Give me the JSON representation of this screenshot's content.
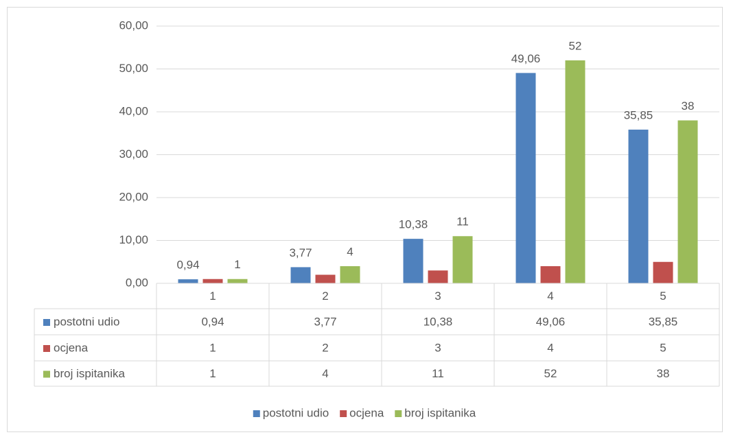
{
  "chart_data": {
    "type": "bar",
    "categories": [
      "1",
      "2",
      "3",
      "4",
      "5"
    ],
    "series": [
      {
        "name": "postotni udio",
        "color": "#4f81bd",
        "values": [
          0.94,
          3.77,
          10.38,
          49.06,
          35.85
        ],
        "value_labels": [
          "0,94",
          "3,77",
          "10,38",
          "49,06",
          "35,85"
        ]
      },
      {
        "name": "ocjena",
        "color": "#c0504d",
        "values": [
          1,
          2,
          3,
          4,
          5
        ]
      },
      {
        "name": "broj ispitanika",
        "color": "#9bbb59",
        "values": [
          1,
          4,
          11,
          52,
          38
        ]
      }
    ],
    "ylim": [
      0,
      60
    ],
    "yticks": [
      {
        "value": 0,
        "label": "0,00"
      },
      {
        "value": 10,
        "label": "10,00"
      },
      {
        "value": 20,
        "label": "20,00"
      },
      {
        "value": 30,
        "label": "30,00"
      },
      {
        "value": 40,
        "label": "40,00"
      },
      {
        "value": 50,
        "label": "50,00"
      },
      {
        "value": 60,
        "label": "60,00"
      }
    ],
    "grid": true,
    "data_table": true,
    "legend": "bottom"
  }
}
